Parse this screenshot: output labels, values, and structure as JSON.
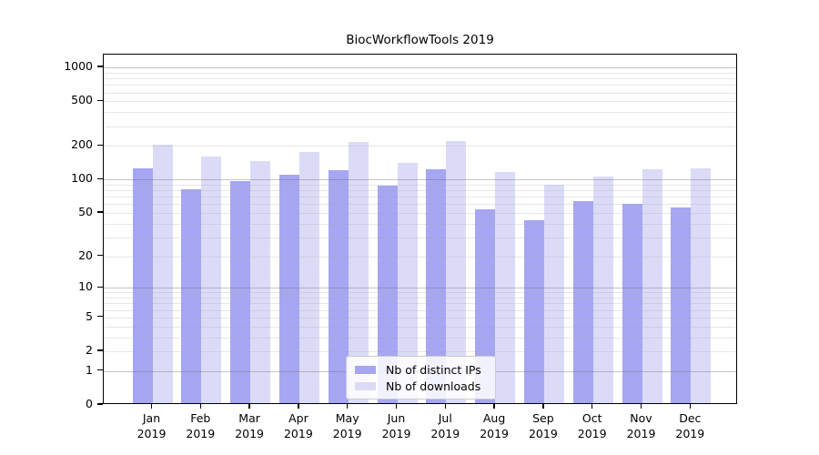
{
  "chart_data": {
    "type": "bar",
    "title": "BiocWorkflowTools 2019",
    "year": "2019",
    "categories": [
      "Jan",
      "Feb",
      "Mar",
      "Apr",
      "May",
      "Jun",
      "Jul",
      "Aug",
      "Sep",
      "Oct",
      "Nov",
      "Dec"
    ],
    "series": [
      {
        "name": "Nb of distinct IPs",
        "color": "#a6a6f3",
        "values": [
          121,
          79,
          94,
          107,
          116,
          85,
          119,
          52,
          41,
          62,
          58,
          54
        ]
      },
      {
        "name": "Nb of downloads",
        "color": "#dbdbf8",
        "values": [
          196,
          155,
          140,
          169,
          208,
          135,
          211,
          113,
          87,
          102,
          118,
          121
        ]
      }
    ],
    "yscale": "log1p",
    "y_ticks": [
      0,
      1,
      2,
      5,
      10,
      20,
      50,
      100,
      200,
      500,
      1000
    ],
    "ylim": [
      0,
      1300
    ],
    "xlabel": "",
    "ylabel": "",
    "grid": true,
    "legend_position": "lower-center",
    "colors": {
      "grid_major": "#c8c8c8",
      "grid_minor": "#e7e7e7",
      "spine": "#000000",
      "text": "#000000",
      "background": "#ffffff"
    }
  }
}
